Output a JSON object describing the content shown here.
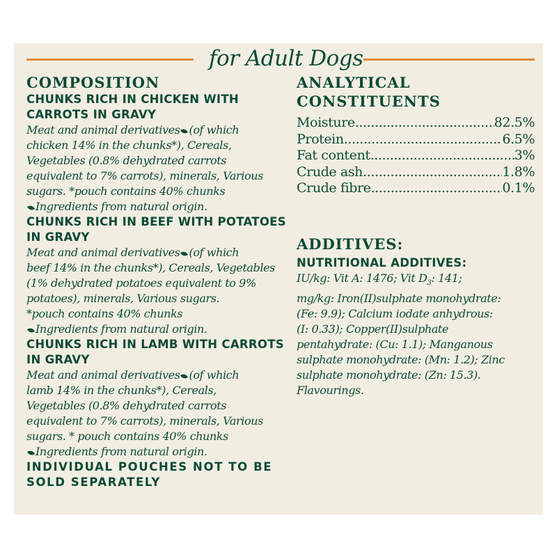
{
  "header": {
    "title": "for Adult Dogs"
  },
  "composition": {
    "heading": "COMPOSITION",
    "products": [
      {
        "title_lines": [
          "CHUNKS RICH IN CHICKEN WITH",
          "CARROTS IN GRAVY"
        ],
        "first_pre": "Meat and animal derivatives",
        "first_post": "(of which",
        "lines": [
          "chicken 14% in the chunks*), Cereals,",
          "Vegetables (0.8% dehydrated carrots",
          "equivalent to 7% carrots), minerals, Various",
          "sugars. *pouch contains 40% chunks"
        ],
        "natural": "Ingredients from natural origin."
      },
      {
        "title_lines": [
          "CHUNKS RICH IN BEEF WITH POTATOES",
          "IN GRAVY"
        ],
        "first_pre": "Meat and animal derivatives",
        "first_post": "(of which",
        "lines": [
          "beef 14% in the chunks*), Cereals, Vegetables",
          "(1% dehydrated potatoes equivalent to 9%",
          "potatoes), minerals, Various sugars.",
          "*pouch contains 40% chunks"
        ],
        "natural": "Ingredients from natural origin."
      },
      {
        "title_lines": [
          "CHUNKS RICH IN LAMB WITH CARROTS",
          "IN GRAVY"
        ],
        "first_pre": "Meat and animal derivatives",
        "first_post": "(of which",
        "lines": [
          "lamb 14% in the chunks*), Cereals,",
          "Vegetables (0.8% dehydrated carrots",
          "equivalent to 7% carrots), minerals, Various",
          "sugars. * pouch contains 40% chunks"
        ],
        "natural": "Ingredients from natural origin."
      }
    ],
    "footer_lines": [
      "INDIVIDUAL POUCHES NOT TO BE",
      "SOLD SEPARATELY"
    ]
  },
  "analytical": {
    "heading_lines": [
      "ANALYTICAL",
      "CONSTITUENTS"
    ],
    "rows": [
      {
        "label": "Moisture",
        "value": "82.5%"
      },
      {
        "label": "Protein",
        "value": "6.5%"
      },
      {
        "label": "Fat content",
        "value": "3%"
      },
      {
        "label": "Crude ash",
        "value": "1.8%"
      },
      {
        "label": "Crude fibre",
        "value": "0.1%"
      }
    ]
  },
  "additives": {
    "heading": "ADDITIVES:",
    "subheading": "NUTRITIONAL ADDITIVES:",
    "line1_pre": "IU/kg: Vit A: 1476; Vit D",
    "line1_sub": "3",
    "line1_post": ": 141;",
    "lines": [
      "mg/kg: Iron(II)sulphate monohydrate:",
      "(Fe: 9.9); Calcium iodate anhydrous:",
      "(I: 0.33); Copper(II)sulphate",
      "pentahydrate: (Cu: 1.1); Manganous",
      "sulphate monohydrate: (Mn: 1.2); Zinc",
      "sulphate monohydrate: (Zn: 15.3).",
      "Flavourings."
    ]
  },
  "colors": {
    "text": "#0d4a37",
    "accent": "#e08a3c",
    "background": "#f1eee1"
  }
}
